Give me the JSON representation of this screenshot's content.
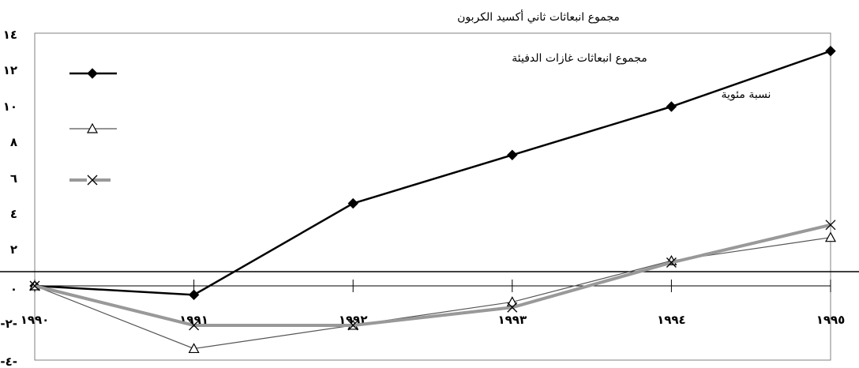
{
  "chart_data": {
    "type": "line",
    "title": "مجموع انبعاثات ثاني أكسيد الكربون",
    "annotations": [
      "مجموع انبعاثات غازات الدفيئة",
      "نسبة مئوية"
    ],
    "categories": [
      "١٩٩٠",
      "١٩٩١",
      "١٩٩٢",
      "١٩٩٣",
      "١٩٩٤",
      "١٩٩٥"
    ],
    "y_tick_labels": [
      "١٤",
      "١٢",
      "١٠",
      "٨",
      "٦",
      "٤",
      "٢",
      "٠",
      "-٢-",
      "-٤-"
    ],
    "y_tick_values": [
      14,
      12,
      10,
      8,
      6,
      4,
      2,
      0,
      -2,
      -4
    ],
    "ylim": [
      -4,
      14
    ],
    "series": [
      {
        "values": [
          0,
          -0.5,
          4.6,
          7.3,
          10,
          13.1
        ],
        "color": "#000000",
        "marker": "diamond",
        "style": "solid-thick"
      },
      {
        "values": [
          0,
          -3.5,
          -2.2,
          -0.9,
          1.4,
          2.7
        ],
        "color": "#555555",
        "marker": "triangle",
        "style": "solid-thin"
      },
      {
        "values": [
          0,
          -2.2,
          -2.2,
          -1.2,
          1.3,
          3.4
        ],
        "color": "#999999",
        "marker": "x",
        "style": "solid-wide"
      }
    ],
    "legend": "left",
    "grid": false
  }
}
